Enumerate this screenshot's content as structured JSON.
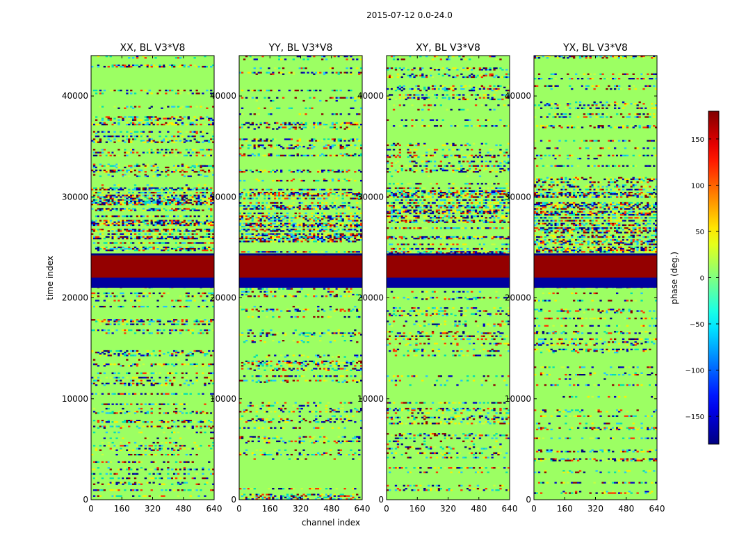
{
  "figure_title": "2015-07-12 0.0-24.0",
  "chart_data": {
    "type": "heatmap",
    "panels": [
      {
        "title": "XX, BL V3*V8",
        "polarization": "XX"
      },
      {
        "title": "YY, BL V3*V8",
        "polarization": "YY"
      },
      {
        "title": "XY, BL V3*V8",
        "polarization": "XY"
      },
      {
        "title": "YX, BL V3*V8",
        "polarization": "YX"
      }
    ],
    "xlabel": "channel index",
    "ylabel": "time index",
    "xlim": [
      0,
      640
    ],
    "ylim": [
      0,
      44000
    ],
    "xticks": [
      "0",
      "160",
      "320",
      "480",
      "640"
    ],
    "yticks": [
      "0",
      "10000",
      "20000",
      "30000",
      "40000"
    ],
    "ytick_values": [
      0,
      10000,
      20000,
      30000,
      40000
    ],
    "colorbar": {
      "label": "phase (deg.)",
      "range": [
        -180,
        180
      ],
      "ticks": [
        {
          "value": 150,
          "label": "150"
        },
        {
          "value": 100,
          "label": "100"
        },
        {
          "value": 50,
          "label": "50"
        },
        {
          "value": 0,
          "label": "0"
        },
        {
          "value": -50,
          "label": "−50"
        },
        {
          "value": -100,
          "label": "−100"
        },
        {
          "value": -150,
          "label": "−150"
        }
      ],
      "colormap": "jet"
    },
    "features": [
      {
        "description": "saturated phase band (~180 deg)",
        "time_range": [
          22000,
          24200
        ]
      },
      {
        "description": "low phase band (~-180 deg)",
        "time_range": [
          21000,
          22000
        ]
      },
      {
        "description": "high-noise region",
        "time_range": [
          24200,
          31000
        ]
      }
    ],
    "background_phase_deg": 10
  }
}
